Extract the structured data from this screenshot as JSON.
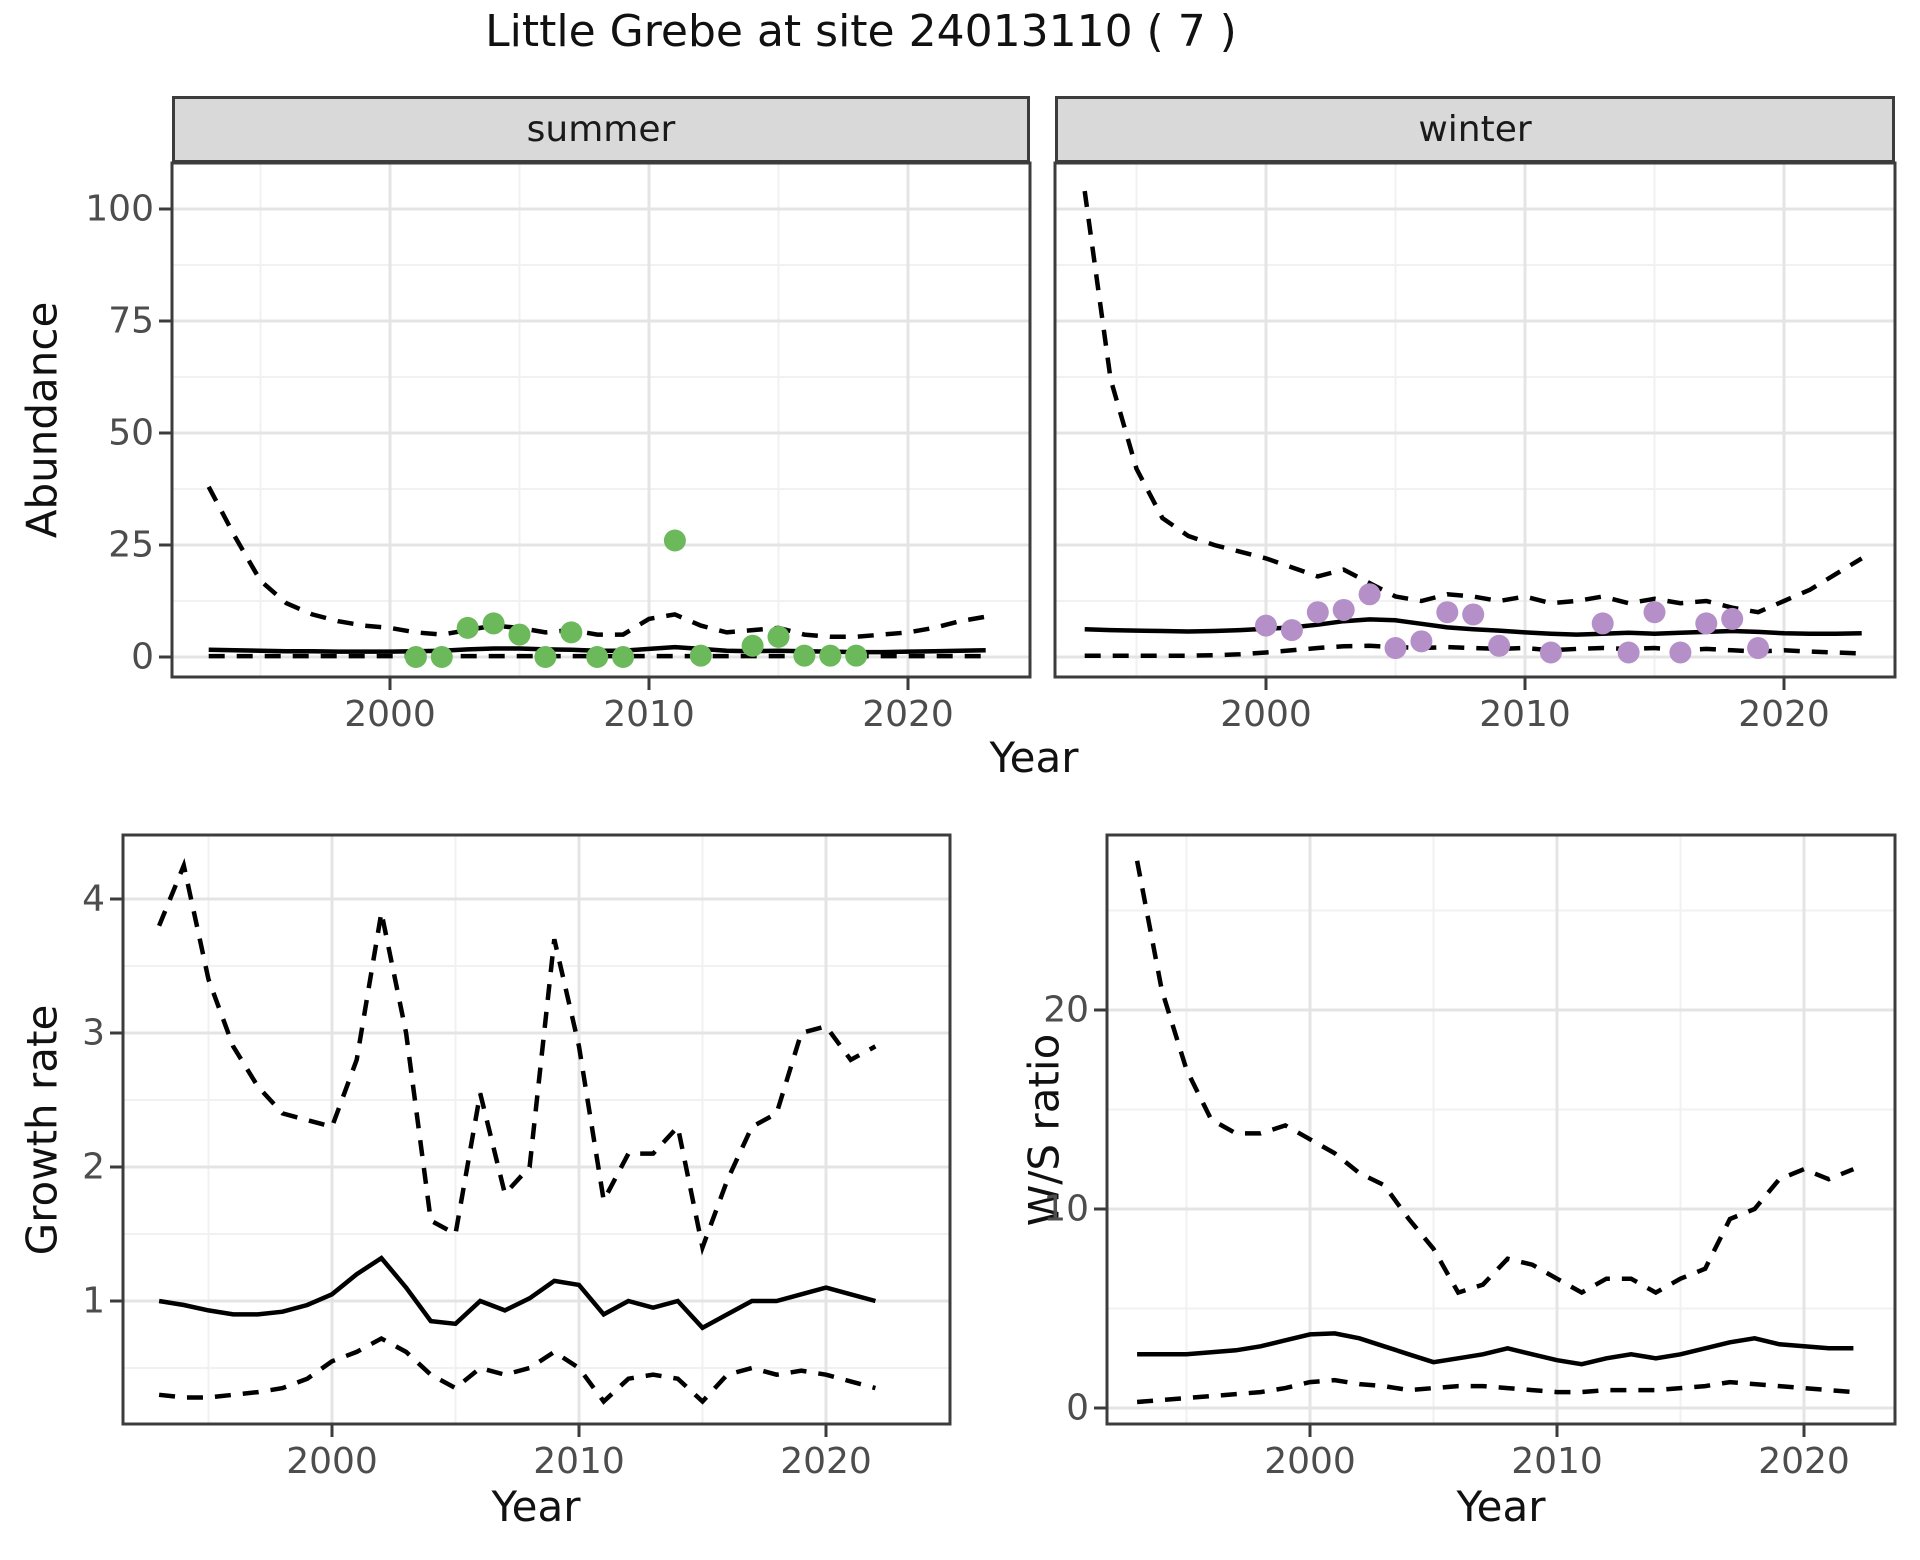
{
  "title": "Little Grebe at site 24013110 ( 7 )",
  "facets": {
    "summer": "summer",
    "winter": "winter"
  },
  "axis_titles": {
    "abundance": "Abundance",
    "growth_rate": "Growth rate",
    "ws_ratio": "W/S ratio",
    "year_top": "Year",
    "year_bottom_left": "Year",
    "year_bottom_right": "Year"
  },
  "colors": {
    "summer_point": "#6BB95B",
    "winter_point": "#B48FC8",
    "line": "#000000",
    "strip_bg": "#D9D9D9",
    "grid_major": "#E4E4E4",
    "grid_minor": "#F1F1F1",
    "tick_text": "#4D4D4D",
    "panel_border": "#3C3C3C"
  },
  "chart_data": [
    {
      "id": "summer",
      "type": "line",
      "facet_label": "summer",
      "title": "Little Grebe at site 24013110 ( 7 )",
      "xlabel": "Year",
      "ylabel": "Abundance",
      "ylim": [
        -4.5,
        110
      ],
      "xlim": [
        1991.6,
        2024.7
      ],
      "xticks": [
        2000,
        2010,
        2020
      ],
      "xminor": [
        1995,
        2005,
        2015
      ],
      "yticks": [
        0,
        25,
        50,
        75,
        100
      ],
      "yminor": [
        12.5,
        37.5,
        62.5,
        87.5
      ],
      "year_start": 1993,
      "series": [
        {
          "name": "fit",
          "style": "solid",
          "values": [
            1.6,
            1.5,
            1.4,
            1.3,
            1.3,
            1.2,
            1.2,
            1.2,
            1.3,
            1.4,
            1.7,
            1.9,
            1.9,
            1.7,
            1.6,
            1.4,
            1.4,
            1.8,
            2.2,
            1.8,
            1.4,
            1.3,
            1.4,
            1.3,
            1.2,
            1.1,
            1.1,
            1.2,
            1.3,
            1.4,
            1.5
          ]
        },
        {
          "name": "upper",
          "style": "dashed",
          "values": [
            38,
            27,
            17,
            12,
            9.5,
            8,
            7,
            6.5,
            5.5,
            5,
            6,
            7,
            6.5,
            5.5,
            6,
            5,
            5,
            8.5,
            9.5,
            7,
            5.5,
            6,
            6.5,
            5,
            4.5,
            4.5,
            5,
            5.5,
            6.5,
            8,
            9
          ]
        },
        {
          "name": "lower",
          "style": "dashed",
          "values": [
            0.2,
            0.2,
            0.2,
            0.2,
            0.2,
            0.2,
            0.2,
            0.2,
            0.2,
            0.2,
            0.2,
            0.2,
            0.2,
            0.2,
            0.2,
            0.2,
            0.2,
            0.2,
            0.2,
            0.2,
            0.2,
            0.2,
            0.2,
            0.2,
            0.2,
            0.2,
            0.2,
            0.2,
            0.2,
            0.2,
            0.2
          ]
        }
      ],
      "points": {
        "name": "observed-counts-summer",
        "color_key": "summer_point",
        "x": [
          2001,
          2002,
          2003,
          2004,
          2005,
          2006,
          2007,
          2008,
          2009,
          2011,
          2012,
          2014,
          2015,
          2016,
          2017,
          2018
        ],
        "y": [
          0,
          0,
          6.5,
          7.5,
          5,
          0,
          5.5,
          0,
          0,
          26,
          0.3,
          2.5,
          4.5,
          0.3,
          0.3,
          0.3
        ]
      }
    },
    {
      "id": "winter",
      "type": "line",
      "facet_label": "winter",
      "title": "Little Grebe at site 24013110 ( 7 )",
      "xlabel": "Year",
      "ylabel": "Abundance",
      "ylim": [
        -4.5,
        110
      ],
      "xlim": [
        1991.8,
        2024.3
      ],
      "xticks": [
        2000,
        2010,
        2020
      ],
      "xminor": [
        1995,
        2005,
        2015
      ],
      "yticks": [
        0,
        25,
        50,
        75,
        100
      ],
      "yminor": [
        12.5,
        37.5,
        62.5,
        87.5
      ],
      "year_start": 1993,
      "series": [
        {
          "name": "fit",
          "style": "solid",
          "values": [
            6.2,
            6.0,
            5.9,
            5.8,
            5.7,
            5.8,
            6.0,
            6.3,
            6.6,
            7.2,
            8.0,
            8.4,
            8.2,
            7.4,
            6.6,
            6.2,
            5.9,
            5.5,
            5.2,
            5.0,
            5.2,
            5.4,
            5.2,
            5.4,
            5.6,
            5.8,
            5.6,
            5.3,
            5.2,
            5.2,
            5.3
          ]
        },
        {
          "name": "upper",
          "style": "dashed",
          "values": [
            104,
            62,
            42,
            31,
            27,
            25,
            23.5,
            22,
            20,
            18,
            19.5,
            16.5,
            13.5,
            12.5,
            14,
            13.5,
            12.5,
            13.5,
            12,
            12.5,
            13.5,
            12,
            13,
            12,
            12.5,
            11,
            10,
            12.5,
            15,
            18.5,
            22
          ]
        },
        {
          "name": "lower",
          "style": "dashed",
          "values": [
            0.3,
            0.3,
            0.3,
            0.3,
            0.3,
            0.4,
            0.6,
            1.0,
            1.5,
            2.0,
            2.4,
            2.5,
            2.2,
            2.0,
            2.2,
            2.0,
            1.8,
            2.0,
            1.5,
            1.8,
            2.0,
            1.8,
            2.0,
            1.5,
            1.8,
            1.5,
            1.2,
            1.5,
            1.2,
            1.0,
            0.8
          ]
        }
      ],
      "points": {
        "name": "observed-counts-winter",
        "color_key": "winter_point",
        "x": [
          2000,
          2001,
          2002,
          2003,
          2004,
          2005,
          2006,
          2007,
          2008,
          2009,
          2011,
          2013,
          2014,
          2015,
          2016,
          2017,
          2018,
          2019
        ],
        "y": [
          7,
          6,
          10,
          10.5,
          14,
          2,
          3.5,
          10,
          9.5,
          2.5,
          1,
          7.5,
          1,
          10,
          1,
          7.5,
          8.5,
          2
        ]
      }
    },
    {
      "id": "growth",
      "type": "line",
      "facet_label": "",
      "title": "",
      "xlabel": "Year",
      "ylabel": "Growth rate",
      "ylim": [
        0.08,
        4.48
      ],
      "xlim": [
        1991.5,
        2025.0
      ],
      "xticks": [
        2000,
        2010,
        2020
      ],
      "xminor": [
        1995,
        2005,
        2015
      ],
      "yticks": [
        1,
        2,
        3,
        4
      ],
      "yminor": [
        0.5,
        1.5,
        2.5,
        3.5
      ],
      "year_start": 1993,
      "series": [
        {
          "name": "fit",
          "style": "solid",
          "values": [
            1.0,
            0.97,
            0.93,
            0.9,
            0.9,
            0.92,
            0.97,
            1.05,
            1.2,
            1.32,
            1.1,
            0.85,
            0.83,
            1.0,
            0.93,
            1.02,
            1.15,
            1.12,
            0.9,
            1.0,
            0.95,
            1.0,
            0.8,
            0.9,
            1.0,
            1.0,
            1.05,
            1.1,
            1.05,
            1.0
          ]
        },
        {
          "name": "upper",
          "style": "dashed",
          "values": [
            3.8,
            4.25,
            3.4,
            2.9,
            2.6,
            2.4,
            2.35,
            2.3,
            2.8,
            3.9,
            3.0,
            1.6,
            1.5,
            2.55,
            1.8,
            2.0,
            3.7,
            2.9,
            1.75,
            2.1,
            2.1,
            2.3,
            1.4,
            1.9,
            2.3,
            2.4,
            3.0,
            3.05,
            2.8,
            2.9
          ]
        },
        {
          "name": "lower",
          "style": "dashed",
          "values": [
            0.3,
            0.28,
            0.28,
            0.3,
            0.32,
            0.35,
            0.42,
            0.55,
            0.62,
            0.72,
            0.62,
            0.45,
            0.35,
            0.5,
            0.45,
            0.5,
            0.62,
            0.5,
            0.25,
            0.42,
            0.45,
            0.42,
            0.25,
            0.45,
            0.5,
            0.45,
            0.48,
            0.45,
            0.4,
            0.35
          ]
        }
      ]
    },
    {
      "id": "ws",
      "type": "line",
      "facet_label": "",
      "title": "",
      "xlabel": "Year",
      "ylabel": "W/S ratio",
      "ylim": [
        -0.8,
        28.8
      ],
      "xlim": [
        1991.8,
        2023.7
      ],
      "xticks": [
        2000,
        2010,
        2020
      ],
      "xminor": [
        1995,
        2005,
        2015
      ],
      "yticks": [
        0,
        10,
        20
      ],
      "yminor": [
        5,
        15,
        25
      ],
      "year_start": 1993,
      "series": [
        {
          "name": "fit",
          "style": "solid",
          "values": [
            2.7,
            2.7,
            2.7,
            2.8,
            2.9,
            3.1,
            3.4,
            3.7,
            3.75,
            3.5,
            3.1,
            2.7,
            2.3,
            2.5,
            2.7,
            3.0,
            2.7,
            2.4,
            2.2,
            2.5,
            2.7,
            2.5,
            2.7,
            3.0,
            3.3,
            3.5,
            3.2,
            3.1,
            3.0,
            3.0
          ]
        },
        {
          "name": "upper",
          "style": "dashed",
          "values": [
            27.5,
            21,
            17,
            14.5,
            13.8,
            13.8,
            14.2,
            13.5,
            12.8,
            11.8,
            11.2,
            9.5,
            8.0,
            5.8,
            6.2,
            7.5,
            7.2,
            6.5,
            5.8,
            6.5,
            6.5,
            5.8,
            6.5,
            7.0,
            9.5,
            10.0,
            11.5,
            12.0,
            11.5,
            12.0
          ]
        },
        {
          "name": "lower",
          "style": "dashed",
          "values": [
            0.3,
            0.4,
            0.5,
            0.6,
            0.7,
            0.8,
            1.0,
            1.3,
            1.4,
            1.2,
            1.1,
            0.9,
            1.0,
            1.1,
            1.1,
            1.0,
            0.9,
            0.8,
            0.8,
            0.9,
            0.9,
            0.9,
            1.0,
            1.1,
            1.3,
            1.2,
            1.1,
            1.0,
            0.9,
            0.8
          ]
        }
      ]
    }
  ]
}
